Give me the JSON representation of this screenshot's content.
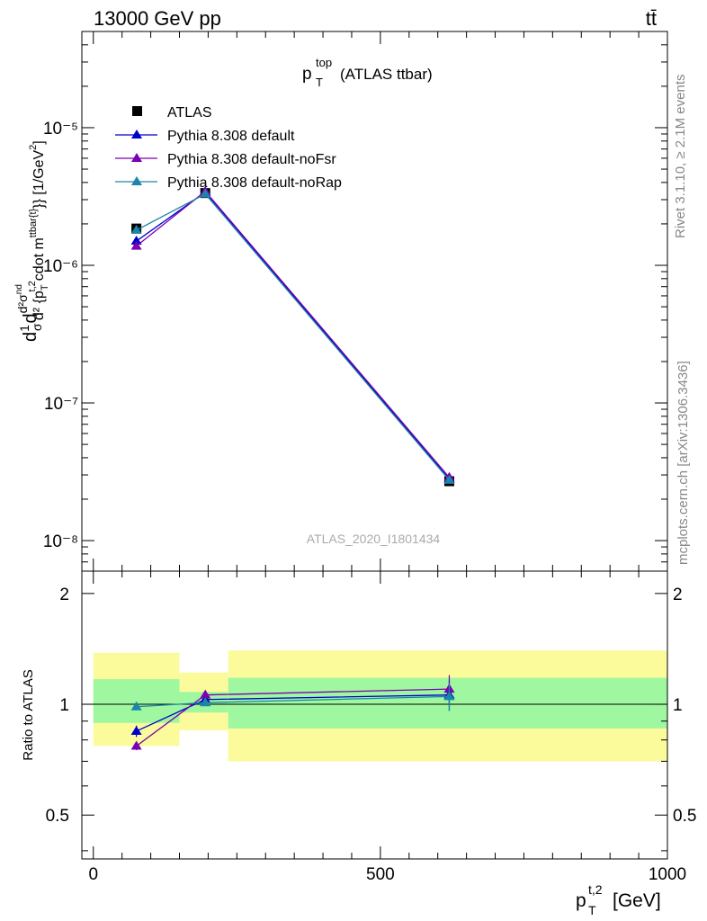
{
  "header": {
    "left_label": "13000 GeV pp",
    "right_label": "tt̄"
  },
  "main": {
    "title_base": "p",
    "title_sub": "T",
    "title_sup": "top",
    "title_rest": "(ATLAS ttbar)",
    "analysis_id": "ATLAS_2020_I1801434",
    "ylabel": "d²σ^{nd} / dσ d1 d² {p_T^{t,2} cdot m^{ttbar(t)}}} [1/GeV²]",
    "ylabel_parts": {
      "prefix": "d",
      "frac_num": "1",
      "frac_den": "σ",
      "d2": "d",
      "sup_nd": "nd",
      "sigma": "σ",
      "top_line": "d²σ",
      "bottom_line": "d² {p",
      "sub_T": "T",
      "sup_t2": "t,2",
      "cdot": "cdot m",
      "sup_ttbar": "ttbar{t}",
      "closing": "}} [1/GeV",
      "sup_2": "2",
      "end": "]"
    }
  },
  "ratio": {
    "ylabel": "Ratio to ATLAS"
  },
  "xaxis": {
    "label_base": "p",
    "label_sub": "T",
    "label_sup": "t,2",
    "label_unit": "[GeV]",
    "ticks": [
      "0",
      "500",
      "1000"
    ]
  },
  "side_text": {
    "rivet": "Rivet 3.1.10, ≥ 2.1M events",
    "mcplots": "mcplots.cern.ch [arXiv:1306.3436]"
  },
  "colors": {
    "data": "#000000",
    "default": "#0000cc",
    "noFsr": "#7a00b0",
    "noRap": "#1a86a8",
    "band_inner": "#9ff79f",
    "band_outer": "#fbfb9b"
  },
  "chart_data": [
    {
      "type": "line",
      "xlim": [
        -20,
        1000
      ],
      "ylim": [
        6e-09,
        5e-05
      ],
      "yscale": "log",
      "ytick_labels": [
        "10⁻⁸",
        "10⁻⁷",
        "10⁻⁶",
        "10⁻⁵"
      ],
      "ytick_values": [
        1e-08,
        1e-07,
        1e-06,
        1e-05
      ],
      "legend_position": "top-left",
      "x": [
        75,
        195,
        620
      ],
      "series": [
        {
          "name": "ATLAS",
          "key": "data",
          "marker": "square",
          "values": [
            1.85e-06,
            3.35e-06,
            2.7e-08
          ],
          "errors": [
            1e-07,
            1.5e-07,
            2e-09
          ]
        },
        {
          "name": "Pythia 8.308 default",
          "key": "default",
          "marker": "triangle",
          "values": [
            1.5e-06,
            3.4e-06,
            2.8e-08
          ]
        },
        {
          "name": "Pythia 8.308 default-noFsr",
          "key": "noFsr",
          "marker": "triangle",
          "values": [
            1.38e-06,
            3.45e-06,
            2.88e-08
          ]
        },
        {
          "name": "Pythia 8.308 default-noRap",
          "key": "noRap",
          "marker": "triangle",
          "values": [
            1.8e-06,
            3.3e-06,
            2.75e-08
          ]
        }
      ]
    },
    {
      "type": "line",
      "xlim": [
        -20,
        1000
      ],
      "ylim": [
        0.38,
        2.3
      ],
      "yscale": "log",
      "ytick_labels": [
        "0.5",
        "1",
        "2"
      ],
      "ytick_values": [
        0.5,
        1,
        2
      ],
      "reference_line": 1,
      "bins": [
        {
          "lo": 0,
          "hi": 150,
          "inner": [
            0.89,
            1.17
          ],
          "outer": [
            0.77,
            1.38
          ]
        },
        {
          "lo": 150,
          "hi": 235,
          "inner": [
            0.95,
            1.08
          ],
          "outer": [
            0.85,
            1.22
          ]
        },
        {
          "lo": 235,
          "hi": 1000,
          "inner": [
            0.86,
            1.18
          ],
          "outer": [
            0.7,
            1.4
          ]
        }
      ],
      "x": [
        75,
        195,
        620
      ],
      "series": [
        {
          "name": "Pythia 8.308 default",
          "key": "default",
          "values": [
            0.845,
            1.03,
            1.06
          ],
          "errors": [
            0.03,
            0.02,
            0.1
          ]
        },
        {
          "name": "Pythia 8.308 default-noFsr",
          "key": "noFsr",
          "values": [
            0.77,
            1.06,
            1.1
          ],
          "errors": [
            0.02,
            0.02,
            0.1
          ]
        },
        {
          "name": "Pythia 8.308 default-noRap",
          "key": "noRap",
          "values": [
            0.985,
            1.01,
            1.05
          ],
          "errors": [
            0.02,
            0.02,
            0.09
          ]
        }
      ]
    }
  ]
}
